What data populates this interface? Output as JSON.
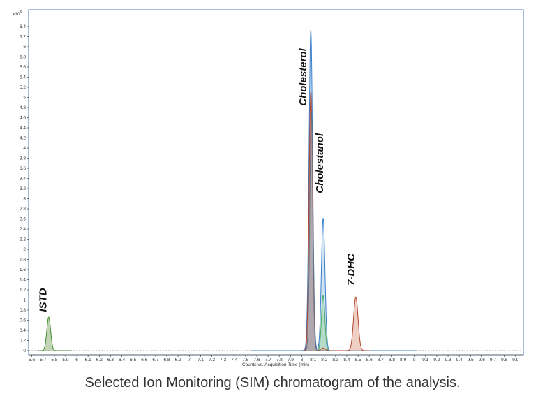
{
  "caption": "Selected Ion Monitoring (SIM) chromatogram of the analysis.",
  "chart_data": {
    "type": "line",
    "title": "",
    "xlabel": "Counts vs. Acquisition Time (min)",
    "ylabel": "",
    "y_multiplier_label": "x10",
    "y_multiplier_exponent": "6",
    "xlim": [
      5.5,
      10.0
    ],
    "ylim": [
      0,
      6.6
    ],
    "x_ticks": [
      5.6,
      5.7,
      5.8,
      5.9,
      6,
      6.1,
      6.2,
      6.3,
      6.4,
      6.5,
      6.6,
      6.7,
      6.8,
      6.9,
      7,
      7.1,
      7.2,
      7.3,
      7.4,
      7.5,
      7.6,
      7.7,
      7.8,
      7.9,
      8,
      8.1,
      8.2,
      8.3,
      8.4,
      8.5,
      8.6,
      8.7,
      8.8,
      8.9,
      9,
      9.1,
      9.2,
      9.3,
      9.4,
      9.5,
      9.6,
      9.7,
      9.8,
      9.9
    ],
    "y_ticks": [
      0,
      0.2,
      0.4,
      0.6,
      0.8,
      1,
      1.2,
      1.4,
      1.6,
      1.8,
      2,
      2.2,
      2.4,
      2.6,
      2.8,
      3,
      3.2,
      3.4,
      3.6,
      3.8,
      4,
      4.2,
      4.4,
      4.6,
      4.8,
      5,
      5.2,
      5.4,
      5.6,
      5.8,
      6,
      6.2,
      6.4
    ],
    "grid": false,
    "legend": "none",
    "series": [
      {
        "color": "#3a7fc9",
        "fill": "#a9cdee",
        "baseline_range": [
          7.55,
          9.02
        ],
        "peaks": [
          {
            "center": 8.08,
            "height": 6.28,
            "width": 0.016
          },
          {
            "center": 8.19,
            "height": 2.62,
            "width": 0.016
          },
          {
            "center": 8.08,
            "height": 0.06,
            "width": 0.03
          }
        ]
      },
      {
        "color": "#4aa860",
        "fill": "#9fd3a6",
        "baseline_range": [
          8.0,
          8.3
        ],
        "peaks": [
          {
            "center": 8.19,
            "height": 1.09,
            "width": 0.015
          }
        ]
      },
      {
        "color": "#b0432f",
        "fill": "#e2a593",
        "baseline_range": [
          8.0,
          8.6
        ],
        "peaks": [
          {
            "center": 8.08,
            "height": 5.12,
            "width": 0.015
          },
          {
            "center": 8.48,
            "height": 1.06,
            "width": 0.02
          },
          {
            "center": 8.19,
            "height": 0.05,
            "width": 0.02
          }
        ]
      },
      {
        "color": "#6a6f7e",
        "fill": "#8d93a0",
        "baseline_range": [
          8.0,
          8.25
        ],
        "peaks": [
          {
            "center": 8.085,
            "height": 4.7,
            "width": 0.014
          }
        ]
      },
      {
        "color": "#3d8a2a",
        "fill": "#8fae7a",
        "baseline_range": [
          5.65,
          5.95
        ],
        "peaks": [
          {
            "center": 5.75,
            "height": 0.66,
            "width": 0.017
          }
        ]
      }
    ],
    "annotations": [
      {
        "text": "ISTD",
        "x": 5.73,
        "y": 1.0
      },
      {
        "text": "Cholesterol",
        "x": 8.04,
        "y": 5.4
      },
      {
        "text": "Cholestanol",
        "x": 8.19,
        "y": 3.7
      },
      {
        "text": "7-DHC",
        "x": 8.47,
        "y": 1.6
      }
    ]
  }
}
